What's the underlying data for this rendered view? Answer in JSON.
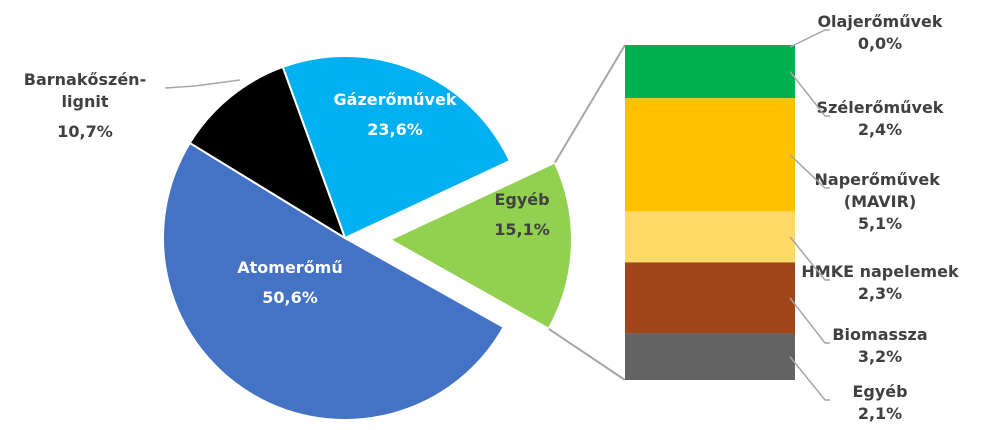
{
  "chart_data": {
    "type": "bar-of-pie",
    "categories": [
      "Gázerőművek",
      "Egyéb",
      "Atomerőmű",
      "Barnakőszén-lignit"
    ],
    "values": [
      23.6,
      15.1,
      50.6,
      10.7
    ],
    "value_labels": [
      "23,6%",
      "15,1%",
      "50,6%",
      "10,7%"
    ],
    "colors": [
      "#00b0f0",
      "#92d050",
      "#4472c4",
      "#000000"
    ],
    "bar_categories": [
      "Olajerőművek",
      "Szélerőművek",
      "Naperőművek (MAVIR)",
      "HMKE napelemek",
      "Biomassza",
      "Egyéb"
    ],
    "bar_values": [
      0.0,
      2.4,
      5.1,
      2.3,
      3.2,
      2.1
    ],
    "bar_value_labels": [
      "0,0%",
      "2,4%",
      "5,1%",
      "2,3%",
      "3,2%",
      "2,1%"
    ],
    "bar_colors": [
      "#7f7f7f",
      "#00b050",
      "#ffc000",
      "#ffd966",
      "#a0441a",
      "#636363"
    ]
  }
}
